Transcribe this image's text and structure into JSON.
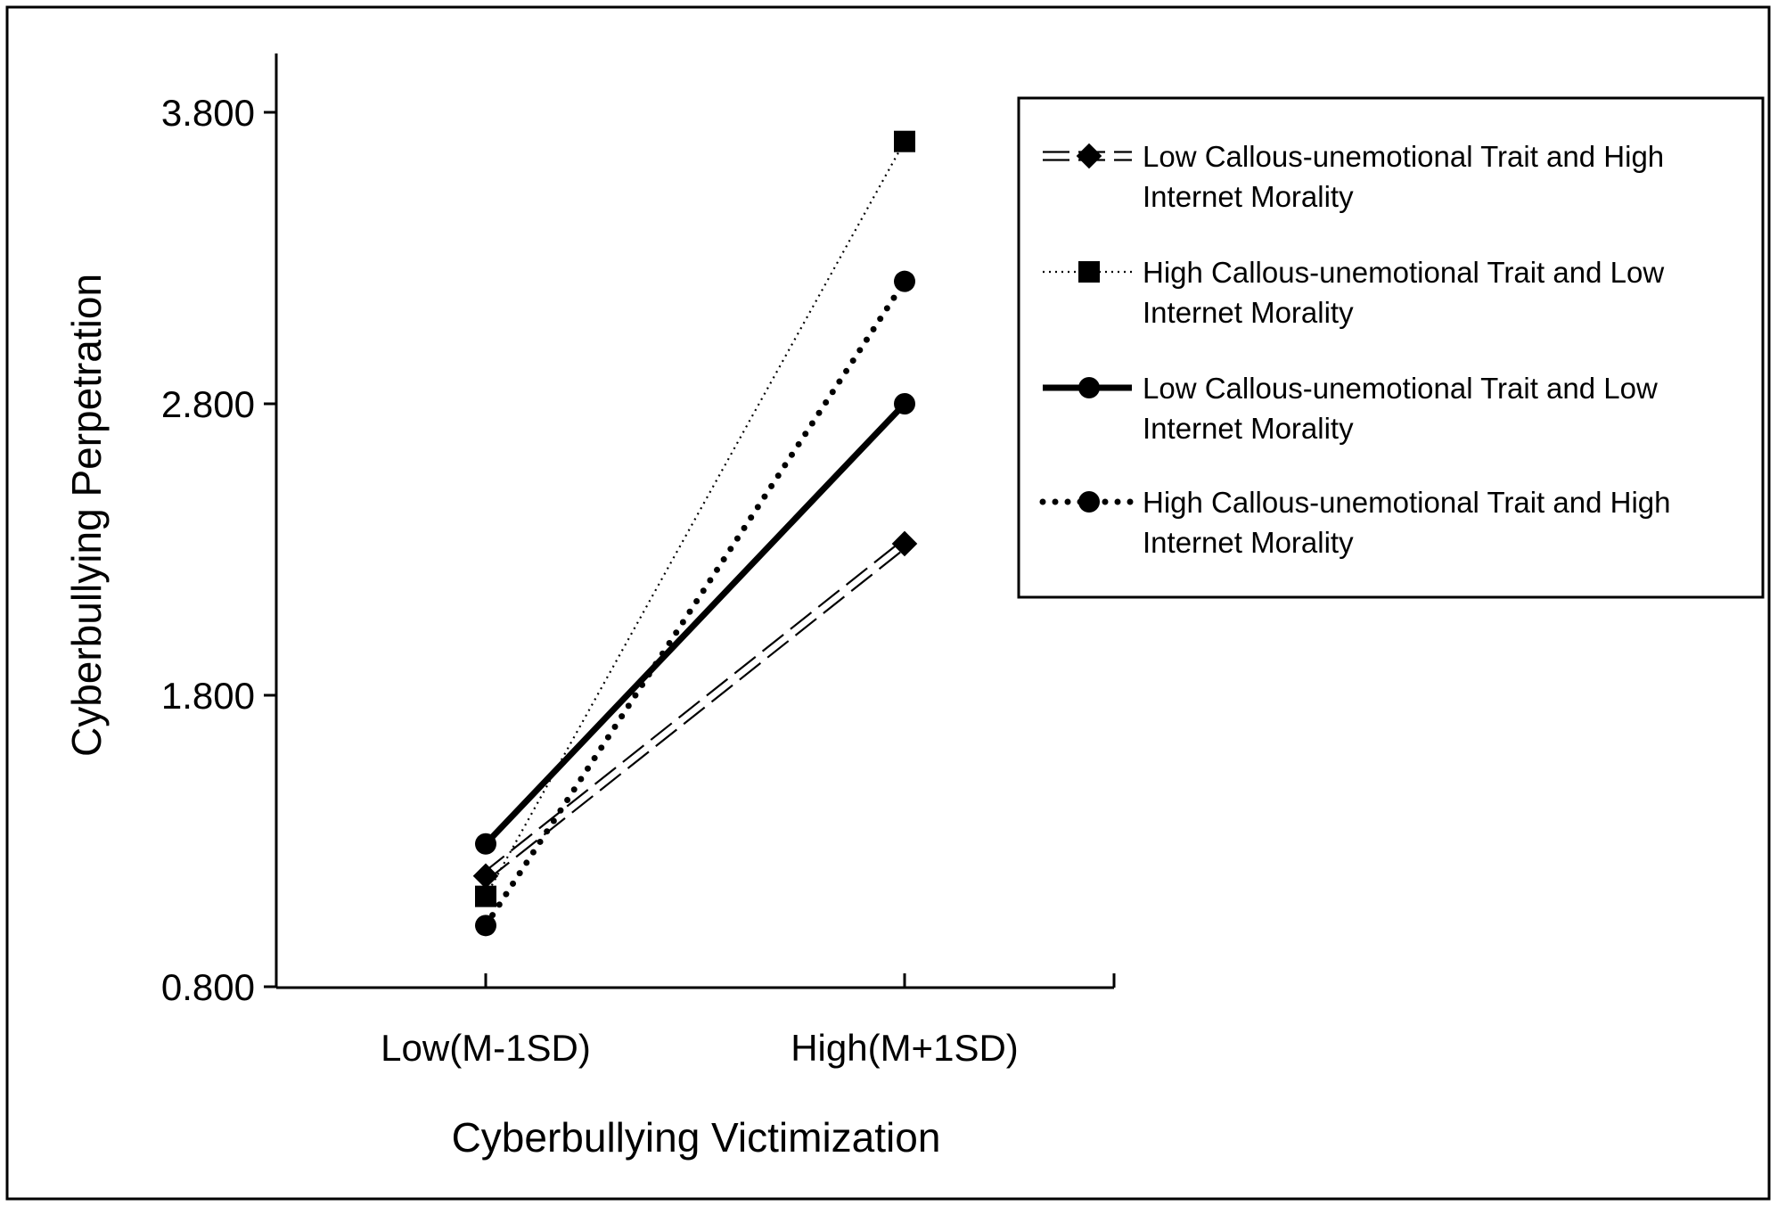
{
  "chart_data": {
    "type": "line",
    "title": "",
    "xlabel": "Cyberbullying Victimization",
    "ylabel": "Cyberbullying Perpetration",
    "categories": [
      "Low(M-1SD)",
      "High(M+1SD)"
    ],
    "ylim": [
      0.8,
      3.8
    ],
    "yticks": [
      "0.800",
      "1.800",
      "2.800",
      "3.800"
    ],
    "grid": false,
    "legend_position": "top-right",
    "series": [
      {
        "name": [
          "Low Callous-unemotional Trait and High",
          "Internet Morality"
        ],
        "values": [
          1.18,
          2.32
        ],
        "marker": "diamond",
        "line_style": "double-dashed"
      },
      {
        "name": [
          "High Callous-unemotional Trait and Low",
          "Internet Morality"
        ],
        "values": [
          1.11,
          3.7
        ],
        "marker": "square",
        "line_style": "fine-dotted"
      },
      {
        "name": [
          "Low Callous-unemotional Trait and Low",
          "Internet Morality"
        ],
        "values": [
          1.29,
          2.8
        ],
        "marker": "circle",
        "line_style": "solid"
      },
      {
        "name": [
          "High Callous-unemotional Trait and High",
          "Internet Morality"
        ],
        "values": [
          1.01,
          3.22
        ],
        "marker": "circle",
        "line_style": "bold-dotted"
      }
    ]
  }
}
